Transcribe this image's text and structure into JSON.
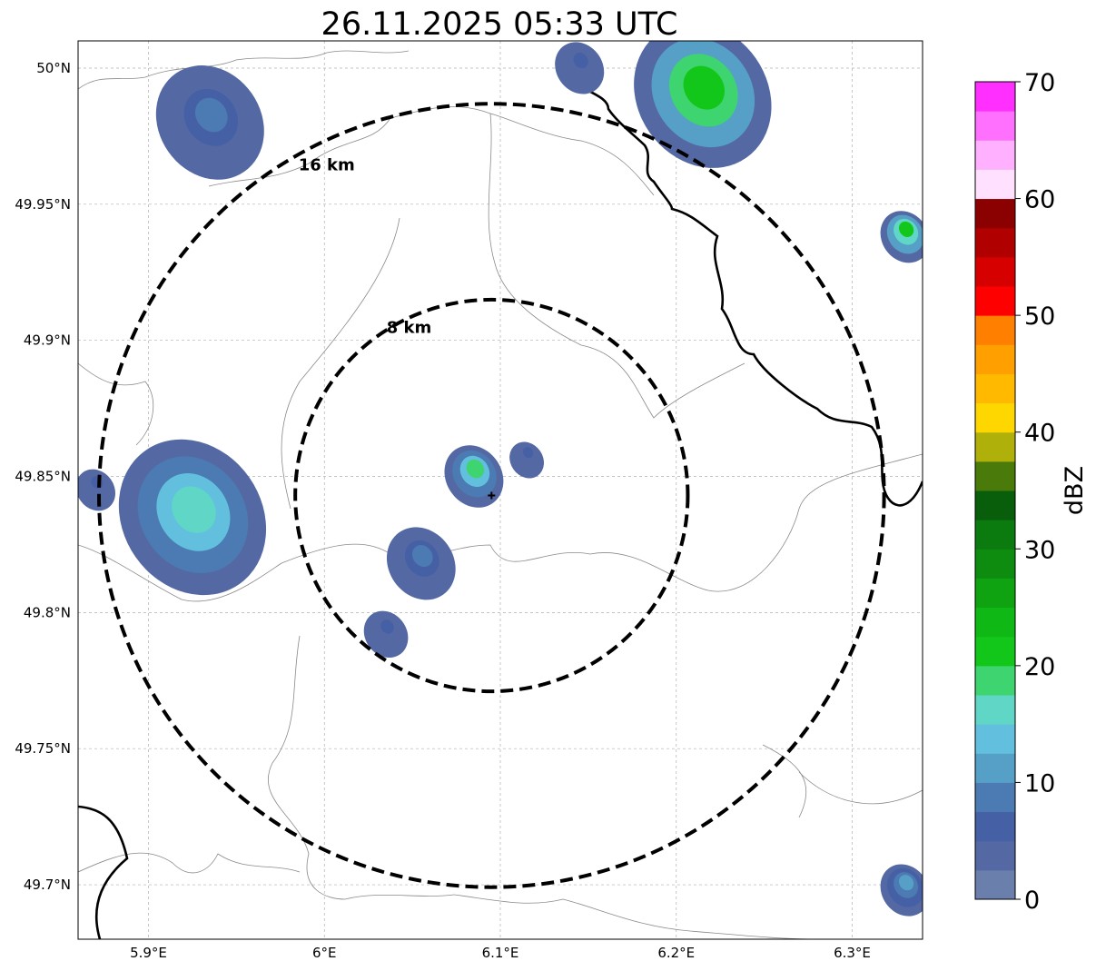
{
  "title": "26.11.2025 05:33 UTC",
  "map": {
    "lon_ticks": [
      {
        "value": 5.9,
        "label": "5.9°E"
      },
      {
        "value": 6.0,
        "label": "6°E"
      },
      {
        "value": 6.1,
        "label": "6.1°E"
      },
      {
        "value": 6.2,
        "label": "6.2°E"
      },
      {
        "value": 6.3,
        "label": "6.3°E"
      }
    ],
    "lat_ticks": [
      {
        "value": 50.0,
        "label": "50°N"
      },
      {
        "value": 49.95,
        "label": "49.95°N"
      },
      {
        "value": 49.9,
        "label": "49.9°N"
      },
      {
        "value": 49.85,
        "label": "49.85°N"
      },
      {
        "value": 49.8,
        "label": "49.8°N"
      },
      {
        "value": 49.75,
        "label": "49.75°N"
      },
      {
        "value": 49.7,
        "label": "49.7°N"
      }
    ],
    "lon_range": [
      5.86,
      6.34
    ],
    "lat_range": [
      49.68,
      50.01
    ],
    "gridlines": true,
    "center": {
      "lon": 6.095,
      "lat": 49.843
    },
    "rings": [
      {
        "label": "8 km",
        "radius_km": 8
      },
      {
        "label": "16 km",
        "radius_km": 16
      }
    ]
  },
  "colorbar": {
    "label": "dBZ",
    "ticks": [
      "0",
      "10",
      "20",
      "30",
      "40",
      "50",
      "60",
      "70"
    ],
    "min": 0,
    "max": 70,
    "colors": [
      "#6a7fab",
      "#5469a3",
      "#4660a5",
      "#4c7ab3",
      "#56a0c8",
      "#62c0de",
      "#5fd6c6",
      "#3ed46f",
      "#12c71a",
      "#10b815",
      "#0fa311",
      "#0d8c10",
      "#0b7a0f",
      "#085e0b",
      "#4a7a0a",
      "#b0b00a",
      "#ffd700",
      "#ffba00",
      "#ffa000",
      "#ff7f00",
      "#ff0000",
      "#d60000",
      "#b00000",
      "#8b0000",
      "#ffe0ff",
      "#ffb0ff",
      "#ff70ff",
      "#ff30ff"
    ]
  },
  "echoes": [
    {
      "name": "nw-cell",
      "lon": 5.935,
      "lat": 49.98,
      "r": 0.022,
      "dbz": 8
    },
    {
      "name": "w-cell",
      "lon": 5.925,
      "lat": 49.835,
      "r": 0.03,
      "dbz": 16
    },
    {
      "name": "west-edge",
      "lon": 5.87,
      "lat": 49.845,
      "r": 0.008,
      "dbz": 6
    },
    {
      "name": "center-cell",
      "lon": 6.085,
      "lat": 49.85,
      "r": 0.012,
      "dbz": 18
    },
    {
      "name": "center-east",
      "lon": 6.115,
      "lat": 49.856,
      "r": 0.007,
      "dbz": 5
    },
    {
      "name": "sw-cell",
      "lon": 6.055,
      "lat": 49.818,
      "r": 0.014,
      "dbz": 8
    },
    {
      "name": "s-cell",
      "lon": 6.035,
      "lat": 49.792,
      "r": 0.009,
      "dbz": 5
    },
    {
      "name": "ne-cell",
      "lon": 6.215,
      "lat": 49.99,
      "r": 0.028,
      "dbz": 22
    },
    {
      "name": "ne-small",
      "lon": 6.145,
      "lat": 50.0,
      "r": 0.01,
      "dbz": 5
    },
    {
      "name": "east-cell",
      "lon": 6.33,
      "lat": 49.938,
      "r": 0.01,
      "dbz": 20
    },
    {
      "name": "se-cell",
      "lon": 6.33,
      "lat": 49.698,
      "r": 0.01,
      "dbz": 12
    }
  ]
}
